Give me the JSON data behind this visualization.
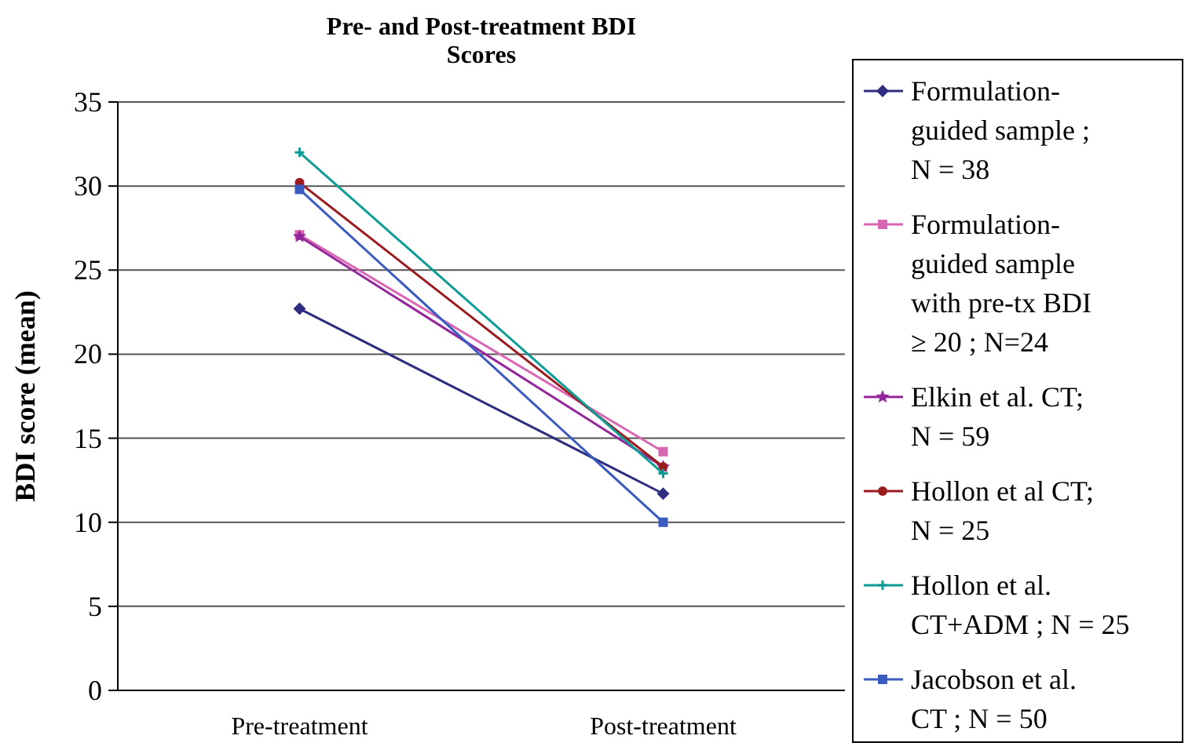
{
  "chart_data": {
    "type": "line",
    "title": "Pre- and Post-treatment BDI Scores",
    "ylabel": "BDI score (mean)",
    "categories": [
      "Pre-treatment",
      "Post-treatment"
    ],
    "ylim": [
      0,
      35
    ],
    "yticks": [
      0,
      5,
      10,
      15,
      20,
      25,
      30,
      35
    ],
    "grid": "y",
    "legend": "right",
    "series": [
      {
        "name": "Formulation-guided sample ; N = 38",
        "color": "#2e2d7f",
        "marker": "diamond",
        "values": [
          22.7,
          11.7
        ]
      },
      {
        "name": "Formulation-guided sample with pre-tx BDI ≥ 20 ; N=24",
        "color": "#d966b3",
        "marker": "square",
        "values": [
          27.1,
          14.2
        ]
      },
      {
        "name": "Elkin et al. CT; N = 59",
        "color": "#93279a",
        "marker": "star",
        "values": [
          27.0,
          13.3
        ]
      },
      {
        "name": "Hollon et al CT; N = 25",
        "color": "#9b1c1f",
        "marker": "circle",
        "values": [
          30.2,
          13.3
        ]
      },
      {
        "name": "Hollon et al. CT+ADM ; N = 25",
        "color": "#0f9b96",
        "marker": "cross",
        "values": [
          32.0,
          12.9
        ]
      },
      {
        "name": "Jacobson et al. CT ; N = 50",
        "color": "#3a5bbf",
        "marker": "square",
        "values": [
          29.8,
          10.0
        ]
      }
    ]
  }
}
